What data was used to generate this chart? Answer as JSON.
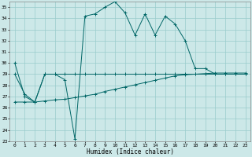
{
  "title": "",
  "xlabel": "Humidex (Indice chaleur)",
  "background_color": "#cce8e8",
  "grid_color": "#99cccc",
  "line_color": "#006666",
  "xlim": [
    -0.5,
    23.5
  ],
  "ylim": [
    23,
    35.5
  ],
  "yticks": [
    23,
    24,
    25,
    26,
    27,
    28,
    29,
    30,
    31,
    32,
    33,
    34,
    35
  ],
  "xticks": [
    0,
    1,
    2,
    3,
    4,
    5,
    6,
    7,
    8,
    9,
    10,
    11,
    12,
    13,
    14,
    15,
    16,
    17,
    18,
    19,
    20,
    21,
    22,
    23
  ],
  "series1_x": [
    0,
    1,
    2,
    3,
    4,
    5,
    6,
    7,
    8,
    9,
    10,
    11,
    12,
    13,
    14,
    15,
    16,
    17,
    18,
    19,
    20,
    21,
    22,
    23
  ],
  "series1_y": [
    30,
    27,
    26.5,
    29,
    29,
    28.5,
    23.2,
    34.2,
    34.4,
    35.0,
    35.5,
    34.5,
    32.5,
    34.4,
    32.5,
    34.2,
    33.5,
    32.0,
    29.5,
    29.5,
    29.0,
    29.0,
    29.0,
    29.0
  ],
  "series2_x": [
    0,
    1,
    2,
    3,
    4,
    5,
    6,
    7,
    8,
    9,
    10,
    11,
    12,
    13,
    14,
    15,
    16,
    17,
    18,
    19,
    20,
    21,
    22,
    23
  ],
  "series2_y": [
    29.0,
    27.2,
    26.5,
    29.0,
    29.0,
    29.0,
    29.0,
    29.0,
    29.0,
    29.0,
    29.0,
    29.0,
    29.0,
    29.0,
    29.0,
    29.0,
    29.0,
    29.0,
    29.0,
    29.0,
    29.0,
    29.0,
    29.0,
    29.0
  ],
  "series3_x": [
    0,
    1,
    2,
    3,
    4,
    5,
    6,
    7,
    8,
    9,
    10,
    11,
    12,
    13,
    14,
    15,
    16,
    17,
    18,
    19,
    20,
    21,
    22,
    23
  ],
  "series3_y": [
    26.5,
    26.5,
    26.5,
    26.6,
    26.7,
    26.75,
    26.9,
    27.05,
    27.2,
    27.45,
    27.65,
    27.85,
    28.05,
    28.25,
    28.45,
    28.65,
    28.85,
    28.95,
    29.0,
    29.05,
    29.1,
    29.1,
    29.1,
    29.1
  ]
}
